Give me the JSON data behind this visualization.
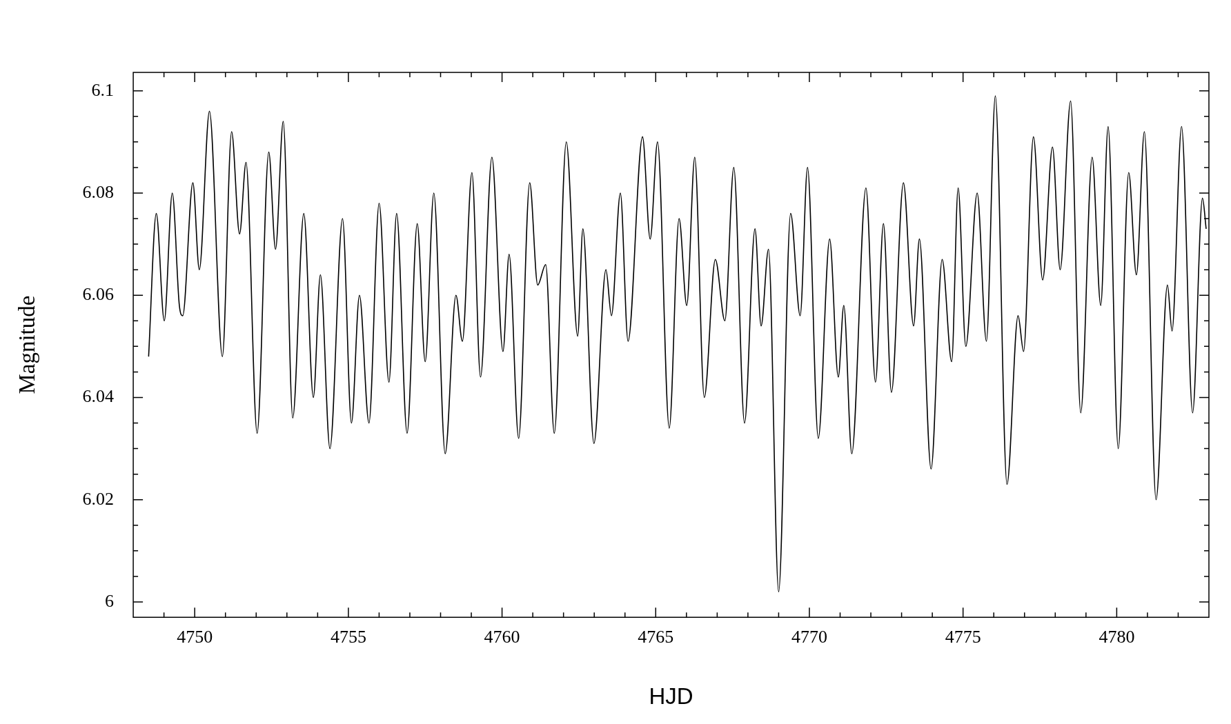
{
  "chart_data": {
    "type": "line",
    "xlabel": "HJD",
    "ylabel": "Magnitude",
    "marker": "none",
    "line_style": "solid",
    "xlim": [
      4748,
      4783
    ],
    "ylim": [
      5.997,
      6.1036
    ],
    "xticks": [
      {
        "value": 4749,
        "label": null
      },
      4750,
      {
        "value": 4751,
        "label": null
      },
      {
        "value": 4752,
        "label": null
      },
      {
        "value": 4753,
        "label": null
      },
      {
        "value": 4754,
        "label": null
      },
      4755,
      {
        "value": 4756,
        "label": null
      },
      {
        "value": 4757,
        "label": null
      },
      {
        "value": 4758,
        "label": null
      },
      {
        "value": 4759,
        "label": null
      },
      4760,
      {
        "value": 4761,
        "label": null
      },
      {
        "value": 4762,
        "label": null
      },
      {
        "value": 4763,
        "label": null
      },
      {
        "value": 4764,
        "label": null
      },
      4765,
      {
        "value": 4766,
        "label": null
      },
      {
        "value": 4767,
        "label": null
      },
      {
        "value": 4768,
        "label": null
      },
      {
        "value": 4769,
        "label": null
      },
      4770,
      {
        "value": 4771,
        "label": null
      },
      {
        "value": 4772,
        "label": null
      },
      {
        "value": 4773,
        "label": null
      },
      {
        "value": 4774,
        "label": null
      },
      4775,
      {
        "value": 4776,
        "label": null
      },
      {
        "value": 4777,
        "label": null
      },
      {
        "value": 4778,
        "label": null
      },
      {
        "value": 4779,
        "label": null
      },
      4780,
      {
        "value": 4781,
        "label": null
      },
      {
        "value": 4782,
        "label": null
      }
    ],
    "yticks": [
      6,
      {
        "value": 6.005,
        "label": null
      },
      6.02,
      {
        "value": 6.015,
        "label": null
      },
      {
        "value": 6.01,
        "label": null
      },
      {
        "value": 6.025,
        "label": null
      },
      6.04,
      {
        "value": 6.03,
        "label": null
      },
      {
        "value": 6.035,
        "label": null
      },
      {
        "value": 6.045,
        "label": null
      },
      6.06,
      {
        "value": 6.05,
        "label": null
      },
      {
        "value": 6.055,
        "label": null
      },
      {
        "value": 6.065,
        "label": null
      },
      6.08,
      {
        "value": 6.07,
        "label": null
      },
      {
        "value": 6.075,
        "label": null
      },
      {
        "value": 6.085,
        "label": null
      },
      6.1,
      {
        "value": 6.09,
        "label": null
      },
      {
        "value": 6.095,
        "label": null
      }
    ],
    "series": [
      {
        "color": "#000000",
        "x": [
          4748.5,
          4748.75,
          4749.01,
          4749.27,
          4749.5,
          4749.61,
          4749.94,
          4750.15,
          4750.48,
          4750.9,
          4751.2,
          4751.46,
          4751.67,
          4752.03,
          4752.41,
          4752.63,
          4752.88,
          4753.19,
          4753.55,
          4753.86,
          4754.09,
          4754.4,
          4754.81,
          4755.1,
          4755.36,
          4755.67,
          4756.0,
          4756.32,
          4756.57,
          4756.91,
          4757.24,
          4757.5,
          4757.78,
          4758.15,
          4758.5,
          4758.71,
          4759.02,
          4759.3,
          4759.67,
          4760.03,
          4760.23,
          4760.54,
          4760.9,
          4761.16,
          4761.42,
          4761.7,
          4762.09,
          4762.46,
          4762.63,
          4762.99,
          4763.38,
          4763.56,
          4763.85,
          4764.1,
          4764.57,
          4764.82,
          4765.06,
          4765.44,
          4765.76,
          4766.01,
          4766.27,
          4766.58,
          4766.94,
          4767.25,
          4767.54,
          4767.89,
          4768.23,
          4768.43,
          4768.67,
          4769.0,
          4769.39,
          4769.7,
          4769.94,
          4770.29,
          4770.66,
          4770.94,
          4771.12,
          4771.38,
          4771.84,
          4772.15,
          4772.41,
          4772.67,
          4773.06,
          4773.39,
          4773.58,
          4773.96,
          4774.32,
          4774.63,
          4774.84,
          4775.09,
          4775.46,
          4775.76,
          4776.05,
          4776.43,
          4776.79,
          4776.97,
          4777.29,
          4777.59,
          4777.91,
          4778.16,
          4778.5,
          4778.83,
          4779.2,
          4779.48,
          4779.72,
          4780.05,
          4780.39,
          4780.64,
          4780.9,
          4781.28,
          4781.65,
          4781.8,
          4782.11,
          4782.47,
          4782.79,
          4782.91
        ],
        "values": [
          6.048,
          6.076,
          6.055,
          6.08,
          6.058,
          6.056,
          6.082,
          6.065,
          6.096,
          6.048,
          6.092,
          6.072,
          6.086,
          6.033,
          6.088,
          6.069,
          6.094,
          6.036,
          6.076,
          6.04,
          6.064,
          6.03,
          6.075,
          6.035,
          6.06,
          6.035,
          6.078,
          6.043,
          6.076,
          6.033,
          6.074,
          6.047,
          6.08,
          6.029,
          6.06,
          6.051,
          6.084,
          6.044,
          6.087,
          6.049,
          6.068,
          6.032,
          6.082,
          6.062,
          6.066,
          6.033,
          6.09,
          6.052,
          6.073,
          6.031,
          6.065,
          6.056,
          6.08,
          6.051,
          6.091,
          6.071,
          6.09,
          6.034,
          6.075,
          6.058,
          6.087,
          6.04,
          6.067,
          6.055,
          6.085,
          6.035,
          6.073,
          6.054,
          6.069,
          6.002,
          6.076,
          6.056,
          6.085,
          6.032,
          6.071,
          6.044,
          6.058,
          6.029,
          6.081,
          6.043,
          6.074,
          6.041,
          6.082,
          6.054,
          6.071,
          6.026,
          6.067,
          6.047,
          6.081,
          6.05,
          6.08,
          6.051,
          6.099,
          6.023,
          6.056,
          6.049,
          6.091,
          6.063,
          6.089,
          6.065,
          6.098,
          6.037,
          6.087,
          6.058,
          6.093,
          6.03,
          6.084,
          6.064,
          6.092,
          6.02,
          6.062,
          6.053,
          6.093,
          6.037,
          6.079,
          6.073
        ]
      }
    ]
  }
}
